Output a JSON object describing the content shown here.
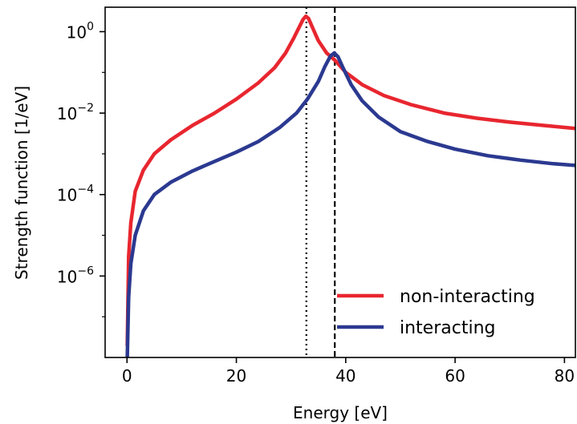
{
  "chart_data": {
    "type": "line",
    "xlabel": "Energy [eV]",
    "ylabel": "Strength function [1/eV]",
    "xlim": [
      -4,
      82
    ],
    "ylim_log10": [
      -8,
      0.6
    ],
    "yscale": "log",
    "grid": false,
    "legend_position": "lower-right",
    "x_ticks": [
      {
        "value": 0,
        "label": "0"
      },
      {
        "value": 20,
        "label": "20"
      },
      {
        "value": 40,
        "label": "40"
      },
      {
        "value": 60,
        "label": "60"
      },
      {
        "value": 80,
        "label": "80"
      }
    ],
    "y_ticks": [
      {
        "exp": 0,
        "base": "10",
        "sup": "0"
      },
      {
        "exp": -2,
        "base": "10",
        "sup": "−2"
      },
      {
        "exp": -4,
        "base": "10",
        "sup": "−4"
      },
      {
        "exp": -6,
        "base": "10",
        "sup": "−6"
      }
    ],
    "series": [
      {
        "name": "non-interacting",
        "color": "#e8262f",
        "x": [
          0.05,
          0.3,
          0.7,
          1.5,
          3,
          5,
          8,
          12,
          16,
          20,
          24,
          27,
          29,
          30.5,
          31.5,
          32.2,
          32.7,
          33.2,
          34,
          35,
          36.5,
          38,
          40,
          43,
          47,
          52,
          58,
          64,
          70,
          76,
          82
        ],
        "y": [
          2e-08,
          3e-06,
          2e-05,
          0.00012,
          0.0004,
          0.001,
          0.0022,
          0.005,
          0.01,
          0.022,
          0.055,
          0.13,
          0.3,
          0.7,
          1.3,
          2.0,
          2.4,
          2.1,
          1.2,
          0.6,
          0.3,
          0.2,
          0.1,
          0.05,
          0.027,
          0.016,
          0.01,
          0.0075,
          0.006,
          0.005,
          0.0042
        ]
      },
      {
        "name": "interacting",
        "color": "#2b3990",
        "x": [
          0.05,
          0.3,
          0.7,
          1.5,
          3,
          5,
          8,
          12,
          16,
          20,
          24,
          28,
          31,
          33,
          35,
          36.2,
          37.2,
          37.9,
          38.6,
          39.5,
          41,
          43,
          46,
          50,
          55,
          60,
          66,
          72,
          78,
          82
        ],
        "y": [
          1e-08,
          3e-07,
          2e-06,
          1e-05,
          4e-05,
          0.0001,
          0.0002,
          0.00038,
          0.00065,
          0.0011,
          0.002,
          0.0045,
          0.01,
          0.022,
          0.06,
          0.14,
          0.25,
          0.3,
          0.24,
          0.13,
          0.05,
          0.02,
          0.008,
          0.0035,
          0.002,
          0.0013,
          0.0009,
          0.0007,
          0.00057,
          0.00052
        ]
      }
    ],
    "vlines": [
      {
        "x": 32.8,
        "style": "dotted",
        "color": "#000000"
      },
      {
        "x": 38.0,
        "style": "dashed",
        "color": "#000000"
      }
    ]
  }
}
